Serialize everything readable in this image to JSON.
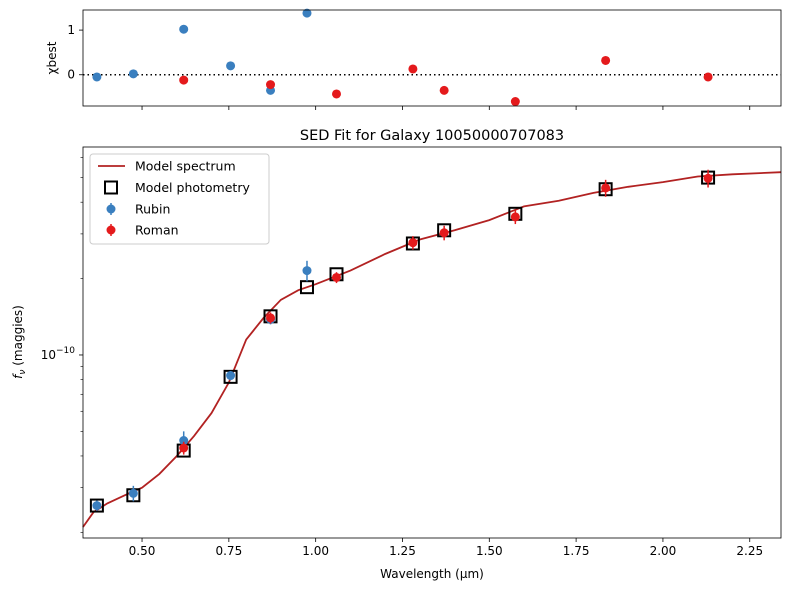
{
  "chart_data": [
    {
      "type": "scatter",
      "panel": "residuals",
      "ylabel": "χbest",
      "xlim": [
        0.33,
        2.34
      ],
      "ylim": [
        -0.7,
        1.45
      ],
      "xticks": [
        0.5,
        0.75,
        1.0,
        1.25,
        1.5,
        1.75,
        2.0,
        2.25
      ],
      "yticks": [
        0,
        1
      ],
      "ytick_labels": [
        "0",
        "1"
      ],
      "reference_line": {
        "y": 0,
        "style": "dotted",
        "color": "#000000"
      },
      "series": [
        {
          "name": "Rubin",
          "color": "#3a7fbf",
          "x": [
            0.37,
            0.475,
            0.62,
            0.755,
            0.87,
            0.975
          ],
          "y": [
            -0.05,
            0.02,
            1.02,
            0.2,
            -0.35,
            1.38
          ]
        },
        {
          "name": "Roman",
          "color": "#e41a1c",
          "x": [
            0.62,
            0.87,
            1.06,
            1.28,
            1.37,
            1.575,
            1.835,
            2.13
          ],
          "y": [
            -0.12,
            -0.22,
            -0.43,
            0.13,
            -0.35,
            -0.6,
            0.32,
            -0.05
          ]
        }
      ]
    },
    {
      "type": "line",
      "panel": "sed",
      "title": "SED Fit for Galaxy 10050000707083",
      "xlabel": "Wavelength (μm)",
      "ylabel": "fν (maggies)",
      "ylabel_main": "f",
      "ylabel_sub": "ν",
      "ylabel_rest": " (maggies)",
      "yscale": "log",
      "xlim": [
        0.33,
        2.34
      ],
      "ylim": [
        1.9e-11,
        6.6e-10
      ],
      "xticks": [
        0.5,
        0.75,
        1.0,
        1.25,
        1.5,
        1.75,
        2.0,
        2.25
      ],
      "xtick_labels": [
        "0.50",
        "0.75",
        "1.00",
        "1.25",
        "1.50",
        "1.75",
        "2.00",
        "2.25"
      ],
      "ytick_major": {
        "value": 1e-10,
        "label_base": "10",
        "label_exp": "−10"
      },
      "legend": {
        "position": "top-left",
        "entries": [
          "Model spectrum",
          "Model photometry",
          "Rubin",
          "Roman"
        ]
      },
      "model_spectrum": {
        "name": "Model spectrum",
        "color": "#b22222",
        "x": [
          0.33,
          0.36,
          0.4,
          0.45,
          0.5,
          0.55,
          0.6,
          0.65,
          0.7,
          0.75,
          0.8,
          0.85,
          0.9,
          0.95,
          1.0,
          1.1,
          1.2,
          1.3,
          1.4,
          1.5,
          1.6,
          1.7,
          1.8,
          1.9,
          2.0,
          2.1,
          2.2,
          2.34
        ],
        "y": [
          2.1e-11,
          2.4e-11,
          2.6e-11,
          2.8e-11,
          3e-11,
          3.4e-11,
          4e-11,
          4.8e-11,
          5.9e-11,
          7.8e-11,
          1.15e-10,
          1.4e-10,
          1.65e-10,
          1.8e-10,
          1.9e-10,
          2.15e-10,
          2.5e-10,
          2.85e-10,
          3.1e-10,
          3.4e-10,
          3.85e-10,
          4.05e-10,
          4.35e-10,
          4.6e-10,
          4.8e-10,
          5.05e-10,
          5.15e-10,
          5.25e-10
        ]
      },
      "model_photometry": {
        "name": "Model photometry",
        "x": [
          0.37,
          0.475,
          0.62,
          0.755,
          0.87,
          0.975,
          1.06,
          1.28,
          1.37,
          1.575,
          1.835,
          2.13
        ],
        "y": [
          2.55e-11,
          2.8e-11,
          4.2e-11,
          8.2e-11,
          1.42e-10,
          1.85e-10,
          2.08e-10,
          2.75e-10,
          3.1e-10,
          3.6e-10,
          4.5e-10,
          5e-10
        ]
      },
      "series": [
        {
          "name": "Rubin",
          "color": "#3a7fbf",
          "x": [
            0.37,
            0.475,
            0.62,
            0.755,
            0.87,
            0.975
          ],
          "y": [
            2.55e-11,
            2.85e-11,
            4.6e-11,
            8.3e-11,
            1.38e-10,
            2.15e-10
          ],
          "yerr": [
            1.2e-12,
            2e-12,
            4e-12,
            3.5e-12,
            6e-12,
            2e-11
          ]
        },
        {
          "name": "Roman",
          "color": "#e41a1c",
          "x": [
            0.62,
            0.87,
            1.06,
            1.28,
            1.37,
            1.575,
            1.835,
            2.13
          ],
          "y": [
            4.3e-11,
            1.4e-10,
            2.02e-10,
            2.77e-10,
            3.03e-10,
            3.5e-10,
            4.55e-10,
            4.97e-10
          ],
          "yerr": [
            2.5e-12,
            7e-12,
            1e-11,
            1.7e-11,
            2e-11,
            2.2e-11,
            3.5e-11,
            4e-11
          ]
        }
      ]
    }
  ]
}
